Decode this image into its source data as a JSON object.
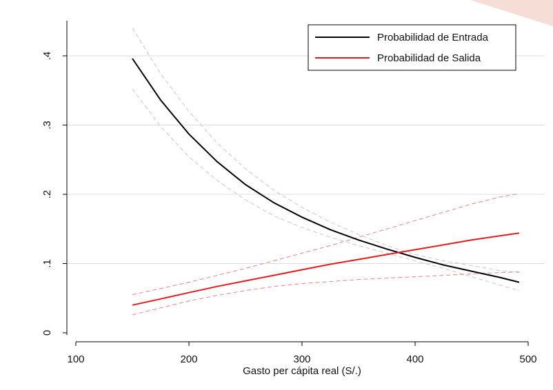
{
  "chart_data": {
    "type": "line",
    "title": "",
    "xlabel": "Gasto per cápita real (S/.)",
    "ylabel": "",
    "xlim": [
      100,
      500
    ],
    "ylim": [
      0,
      0.45
    ],
    "x_ticks": [
      100,
      200,
      300,
      400,
      500
    ],
    "x_tick_labels": [
      "100",
      "200",
      "300",
      "400",
      "500"
    ],
    "y_ticks": [
      0,
      0.1,
      0.2,
      0.3,
      0.4
    ],
    "y_tick_labels": [
      "0",
      ".1",
      ".2",
      ".3",
      ".4"
    ],
    "y_tick_label_rotated": true,
    "grid": "horizontal",
    "legend_position": "top-right",
    "x": [
      150,
      175,
      200,
      225,
      250,
      275,
      300,
      325,
      350,
      375,
      400,
      425,
      450,
      475,
      492
    ],
    "series": [
      {
        "name": "Probabilidad de Entrada",
        "color": "#000000",
        "in_legend": true,
        "line_style": "solid",
        "values": [
          0.396,
          0.336,
          0.287,
          0.247,
          0.214,
          0.188,
          0.167,
          0.149,
          0.134,
          0.121,
          0.109,
          0.098,
          0.089,
          0.08,
          0.073
        ]
      },
      {
        "name": "Probabilidad de Salida",
        "color": "#e41a1c",
        "in_legend": true,
        "line_style": "solid",
        "values": [
          0.04,
          0.049,
          0.058,
          0.067,
          0.075,
          0.083,
          0.091,
          0.099,
          0.106,
          0.113,
          0.12,
          0.127,
          0.134,
          0.14,
          0.144
        ]
      },
      {
        "color": "#c8c8c8",
        "in_legend": false,
        "line_style": "dashed",
        "values": [
          0.44,
          0.374,
          0.32,
          0.274,
          0.237,
          0.206,
          0.181,
          0.16,
          0.142,
          0.126,
          0.113,
          0.104,
          0.097,
          0.09,
          0.087
        ]
      },
      {
        "color": "#c8c8c8",
        "in_legend": false,
        "line_style": "dashed",
        "values": [
          0.352,
          0.298,
          0.254,
          0.22,
          0.192,
          0.169,
          0.152,
          0.138,
          0.126,
          0.115,
          0.104,
          0.093,
          0.081,
          0.069,
          0.061
        ]
      },
      {
        "color": "#f08080",
        "in_legend": false,
        "line_style": "dashed",
        "values": [
          0.055,
          0.064,
          0.073,
          0.083,
          0.093,
          0.104,
          0.115,
          0.126,
          0.138,
          0.15,
          0.162,
          0.174,
          0.186,
          0.196,
          0.201
        ]
      },
      {
        "color": "#f08080",
        "in_legend": false,
        "line_style": "dashed",
        "values": [
          0.026,
          0.036,
          0.046,
          0.054,
          0.061,
          0.067,
          0.071,
          0.074,
          0.077,
          0.079,
          0.081,
          0.083,
          0.085,
          0.087,
          0.088
        ]
      }
    ]
  }
}
